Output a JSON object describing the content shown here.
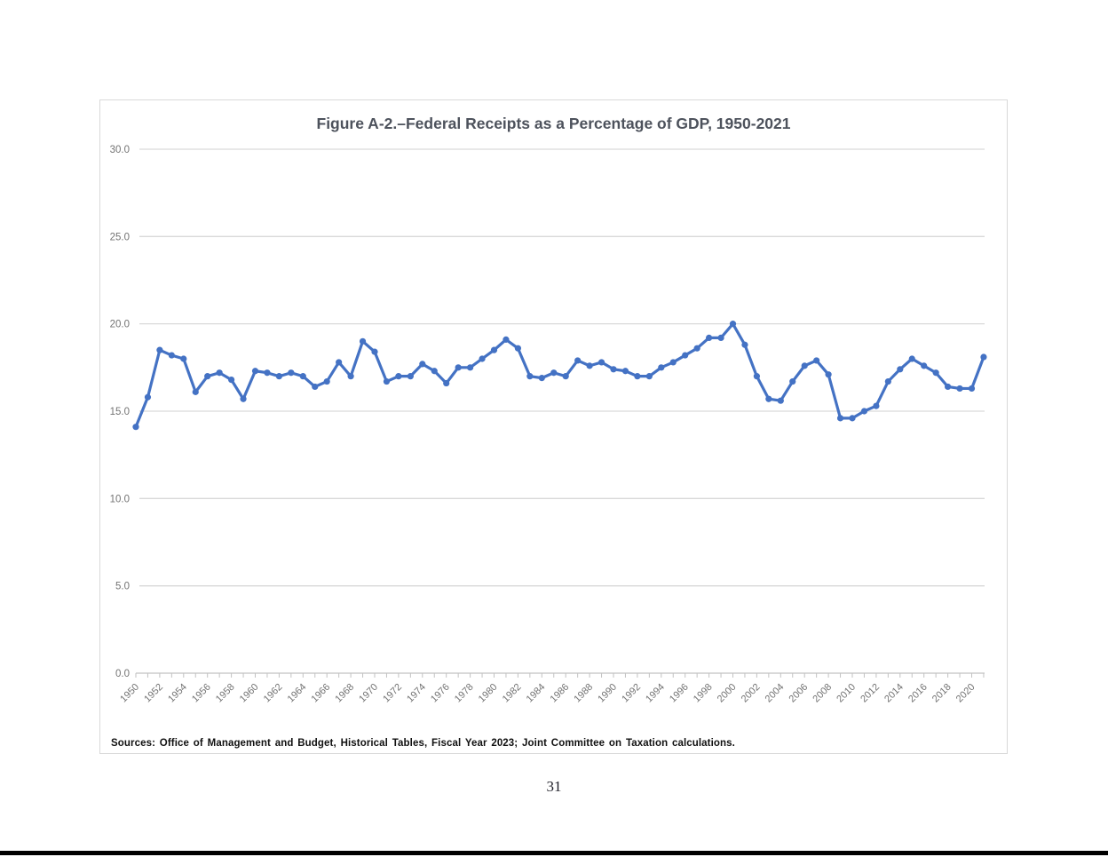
{
  "page": {
    "number": "31"
  },
  "figure": {
    "title": "Figure A-2.–Federal Receipts as a Percentage of GDP, 1950-2021",
    "source_note": "Sources: Office of Management and Budget, Historical Tables, Fiscal Year 2023; Joint Committee on Taxation calculations."
  },
  "chart_data": {
    "type": "line",
    "title": "Figure A-2.–Federal Receipts as a Percentage of GDP, 1950-2021",
    "xlabel": "",
    "ylabel": "",
    "ylim": [
      0,
      30
    ],
    "ytick_interval": 5,
    "xtick_label_interval": 2,
    "grid": true,
    "legend": "none",
    "line_color": "#4472C4",
    "marker": "circle",
    "x": [
      1950,
      1951,
      1952,
      1953,
      1954,
      1955,
      1956,
      1957,
      1958,
      1959,
      1960,
      1961,
      1962,
      1963,
      1964,
      1965,
      1966,
      1967,
      1968,
      1969,
      1970,
      1971,
      1972,
      1973,
      1974,
      1975,
      1976,
      1977,
      1978,
      1979,
      1980,
      1981,
      1982,
      1983,
      1984,
      1985,
      1986,
      1987,
      1988,
      1989,
      1990,
      1991,
      1992,
      1993,
      1994,
      1995,
      1996,
      1997,
      1998,
      1999,
      2000,
      2001,
      2002,
      2003,
      2004,
      2005,
      2006,
      2007,
      2008,
      2009,
      2010,
      2011,
      2012,
      2013,
      2014,
      2015,
      2016,
      2017,
      2018,
      2019,
      2020,
      2021
    ],
    "series": [
      {
        "name": "Federal receipts as a percentage of GDP",
        "values": [
          14.1,
          15.8,
          18.5,
          18.2,
          18.0,
          16.1,
          17.0,
          17.2,
          16.8,
          15.7,
          17.3,
          17.2,
          17.0,
          17.2,
          17.0,
          16.4,
          16.7,
          17.8,
          17.0,
          19.0,
          18.4,
          16.7,
          17.0,
          17.0,
          17.7,
          17.3,
          16.6,
          17.5,
          17.5,
          18.0,
          18.5,
          19.1,
          18.6,
          17.0,
          16.9,
          17.2,
          17.0,
          17.9,
          17.6,
          17.8,
          17.4,
          17.3,
          17.0,
          17.0,
          17.5,
          17.8,
          18.2,
          18.6,
          19.2,
          19.2,
          20.0,
          18.8,
          17.0,
          15.7,
          15.6,
          16.7,
          17.6,
          17.9,
          17.1,
          14.6,
          14.6,
          15.0,
          15.3,
          16.7,
          17.4,
          18.0,
          17.6,
          17.2,
          16.4,
          16.3,
          16.3,
          18.1
        ]
      }
    ],
    "y_tick_labels": [
      "0.0",
      "5.0",
      "10.0",
      "15.0",
      "20.0",
      "25.0",
      "30.0"
    ],
    "x_tick_labels": [
      "1950",
      "1952",
      "1954",
      "1956",
      "1958",
      "1960",
      "1962",
      "1964",
      "1966",
      "1968",
      "1970",
      "1972",
      "1974",
      "1976",
      "1978",
      "1980",
      "1982",
      "1984",
      "1986",
      "1988",
      "1990",
      "1992",
      "1994",
      "1996",
      "1998",
      "2000",
      "2002",
      "2004",
      "2006",
      "2008",
      "2010",
      "2012",
      "2014",
      "2016",
      "2018",
      "2020"
    ]
  },
  "colors": {
    "line": "#4472C4",
    "gridline": "#d9d9d9",
    "axis": "#c2c2c2",
    "tick_label": "#737373",
    "title_text": "#4d525c",
    "page_bottom_bar": "#000000"
  }
}
